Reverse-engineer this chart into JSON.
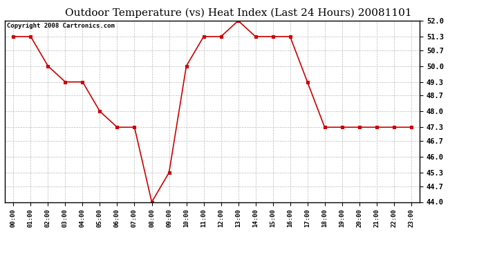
{
  "title": "Outdoor Temperature (vs) Heat Index (Last 24 Hours) 20081101",
  "copyright_text": "Copyright 2008 Cartronics.com",
  "x_labels": [
    "00:00",
    "01:00",
    "02:00",
    "03:00",
    "04:00",
    "05:00",
    "06:00",
    "07:00",
    "08:00",
    "09:00",
    "10:00",
    "11:00",
    "12:00",
    "13:00",
    "14:00",
    "15:00",
    "16:00",
    "17:00",
    "18:00",
    "19:00",
    "20:00",
    "21:00",
    "22:00",
    "23:00"
  ],
  "y_values": [
    51.3,
    51.3,
    50.0,
    49.3,
    49.3,
    48.0,
    47.3,
    47.3,
    44.0,
    45.3,
    50.0,
    51.3,
    51.3,
    52.0,
    51.3,
    51.3,
    51.3,
    49.3,
    47.3,
    47.3,
    47.3,
    47.3,
    47.3,
    47.3
  ],
  "ylim_min": 44.0,
  "ylim_max": 52.0,
  "yticks": [
    44.0,
    44.7,
    45.3,
    46.0,
    46.7,
    47.3,
    48.0,
    48.7,
    49.3,
    50.0,
    50.7,
    51.3,
    52.0
  ],
  "line_color": "#cc0000",
  "marker_color": "#cc0000",
  "bg_color": "#ffffff",
  "plot_bg_color": "#ffffff",
  "grid_color": "#bbbbbb",
  "title_fontsize": 11,
  "copyright_fontsize": 6.5
}
